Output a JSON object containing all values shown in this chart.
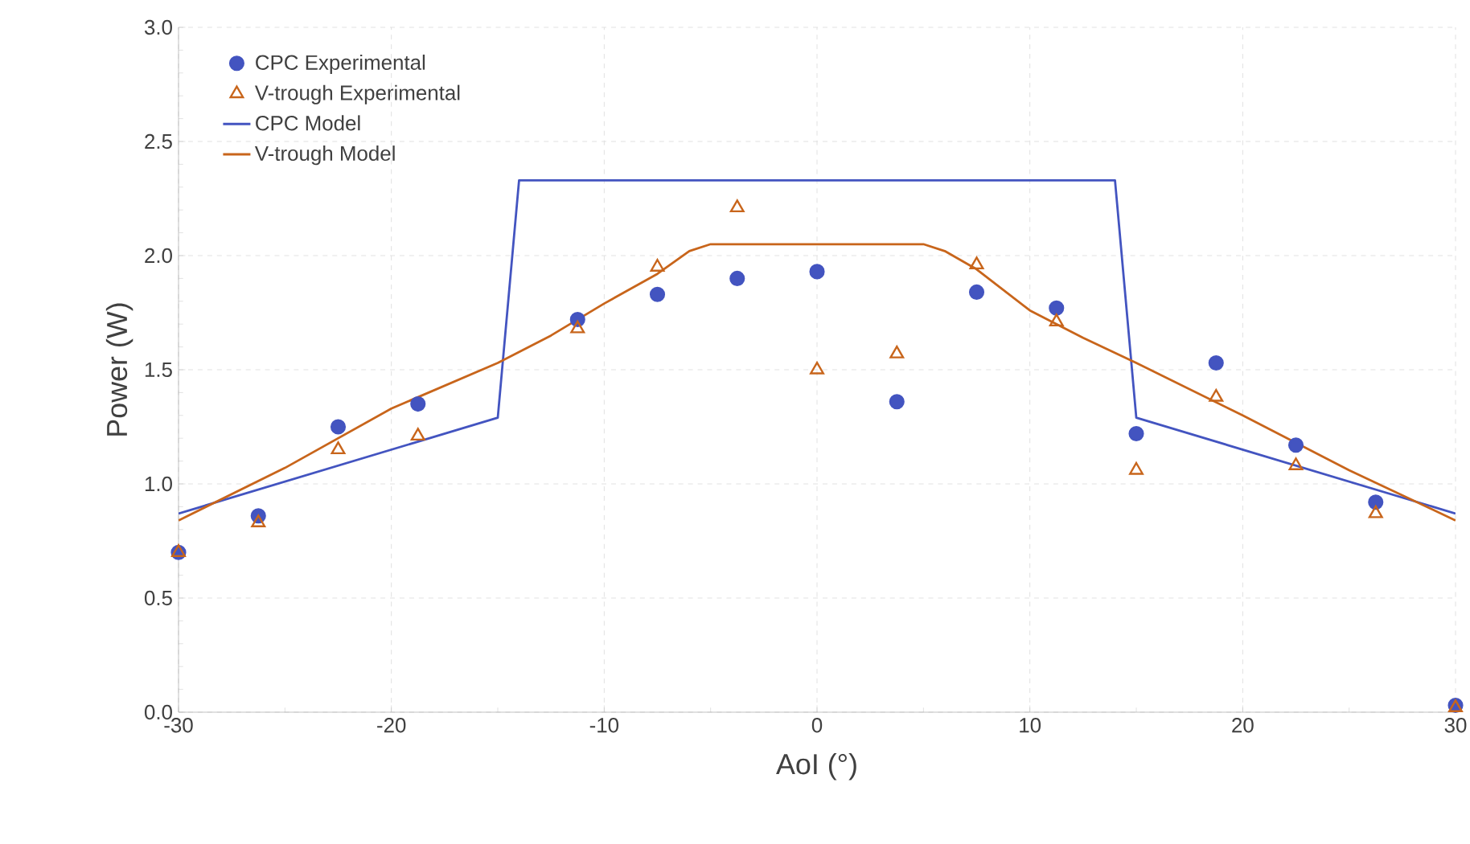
{
  "chart_data": {
    "type": "scatter",
    "xlabel": "AoI (°)",
    "ylabel": "Power (W)",
    "xlim": [
      -30,
      30
    ],
    "xticks": [
      -30,
      -20,
      -10,
      0,
      10,
      20,
      30
    ],
    "ylim": [
      0,
      3
    ],
    "yticks": [
      {
        "value": 0,
        "label": "0.0"
      },
      {
        "value": 0.5,
        "label": "0.5"
      },
      {
        "value": 1,
        "label": "1.0"
      },
      {
        "value": 1.5,
        "label": "1.5"
      },
      {
        "value": 2,
        "label": "2.0"
      },
      {
        "value": 2.5,
        "label": "2.5"
      },
      {
        "value": 3,
        "label": "3.0"
      }
    ],
    "grid": true,
    "legend": "top left",
    "series": [
      {
        "name": "CPC Experimental",
        "marker": "circle",
        "color": "#4354c0",
        "x": [
          -30,
          -26.25,
          -22.5,
          -18.75,
          -11.25,
          -7.5,
          -3.75,
          0,
          3.75,
          7.5,
          11.25,
          15,
          18.75,
          22.5,
          26.25,
          30
        ],
        "values": [
          0.7,
          0.86,
          1.25,
          1.35,
          1.72,
          1.83,
          1.9,
          1.93,
          1.36,
          1.84,
          1.77,
          1.22,
          1.53,
          1.17,
          0.92,
          0.03
        ]
      },
      {
        "name": "V-trough Experimental",
        "marker": "triangle",
        "color": "#c8651b",
        "x": [
          -30,
          -26.25,
          -22.5,
          -18.75,
          -11.25,
          -7.5,
          -3.75,
          0,
          3.75,
          7.5,
          11.25,
          15,
          18.75,
          22.5,
          26.25,
          30
        ],
        "values": [
          0.7,
          0.83,
          1.15,
          1.21,
          1.68,
          1.95,
          2.21,
          1.5,
          1.57,
          1.96,
          1.71,
          1.06,
          1.38,
          1.08,
          0.87,
          0.02
        ]
      },
      {
        "name": "CPC Model",
        "type": "line",
        "marker": "none",
        "color": "#4354c0",
        "x": [
          -30,
          -15,
          -14,
          14,
          15,
          30
        ],
        "values": [
          0.87,
          1.29,
          2.33,
          2.33,
          1.29,
          0.87
        ]
      },
      {
        "name": "V-trough Model",
        "type": "line",
        "marker": "none",
        "color": "#c8651b",
        "x": [
          -30,
          -25,
          -20,
          -15,
          -12.5,
          -10,
          -7.5,
          -6,
          -5,
          5,
          6,
          7.5,
          10,
          12.5,
          15,
          20,
          25,
          30
        ],
        "values": [
          0.84,
          1.07,
          1.33,
          1.53,
          1.65,
          1.79,
          1.92,
          2.02,
          2.05,
          2.05,
          2.02,
          1.94,
          1.76,
          1.64,
          1.53,
          1.3,
          1.06,
          0.84
        ]
      }
    ]
  }
}
